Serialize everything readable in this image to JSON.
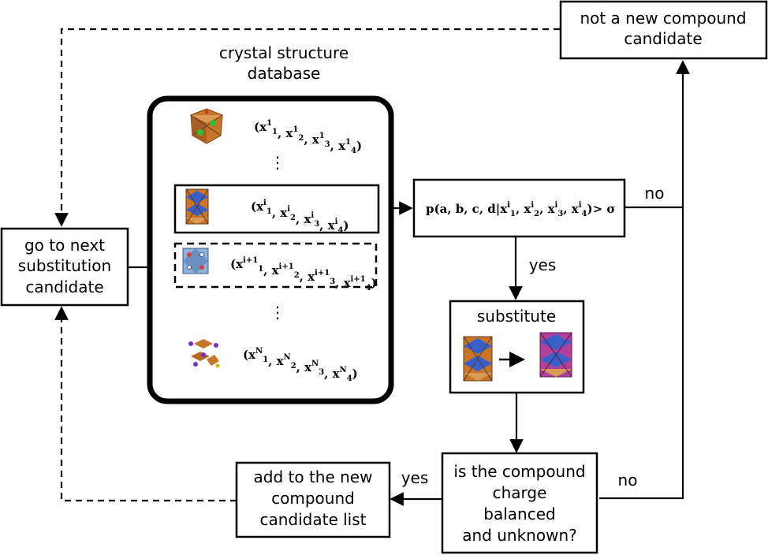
{
  "labels": {
    "not_new_line1": "not a new compound",
    "not_new_line2": "candidate",
    "db_title_line1": "crystal structure",
    "db_title_line2": "database",
    "go_next_line1": "go to next",
    "go_next_line2": "substitution",
    "go_next_line3": "candidate",
    "substitute": "substitute",
    "check_line1": "is the compound",
    "check_line2": "charge",
    "check_line3": "balanced",
    "check_line4": "and unknown?",
    "add_line1": "add to the new",
    "add_line2": "compound",
    "add_line3": "candidate list",
    "no_top": "no",
    "yes_mid": "yes",
    "yes_bottom": "yes",
    "no_bottom": "no",
    "dots": "⋮"
  },
  "database_rows": [
    {
      "sup": "1"
    },
    {
      "sup": "i"
    },
    {
      "sup": "i+1"
    },
    {
      "sup": "N"
    }
  ],
  "probability": {
    "prefix": "p(a, b, c, d|",
    "sup": "i",
    "suffix": ")> σ"
  },
  "colors": {
    "line": "#000000",
    "mineral_orange": "#c8752a",
    "mineral_blue": "#3a5fc8",
    "mineral_green": "#2fbf3a",
    "mineral_magenta": "#b0409a",
    "mineral_purple": "#7a2fc0",
    "mineral_lightblue": "#8fb0d8"
  },
  "icons": [
    "crystal-1-icon",
    "crystal-i-icon",
    "crystal-i-plus-1-icon",
    "crystal-N-icon",
    "crystal-before-icon",
    "crystal-after-icon"
  ]
}
